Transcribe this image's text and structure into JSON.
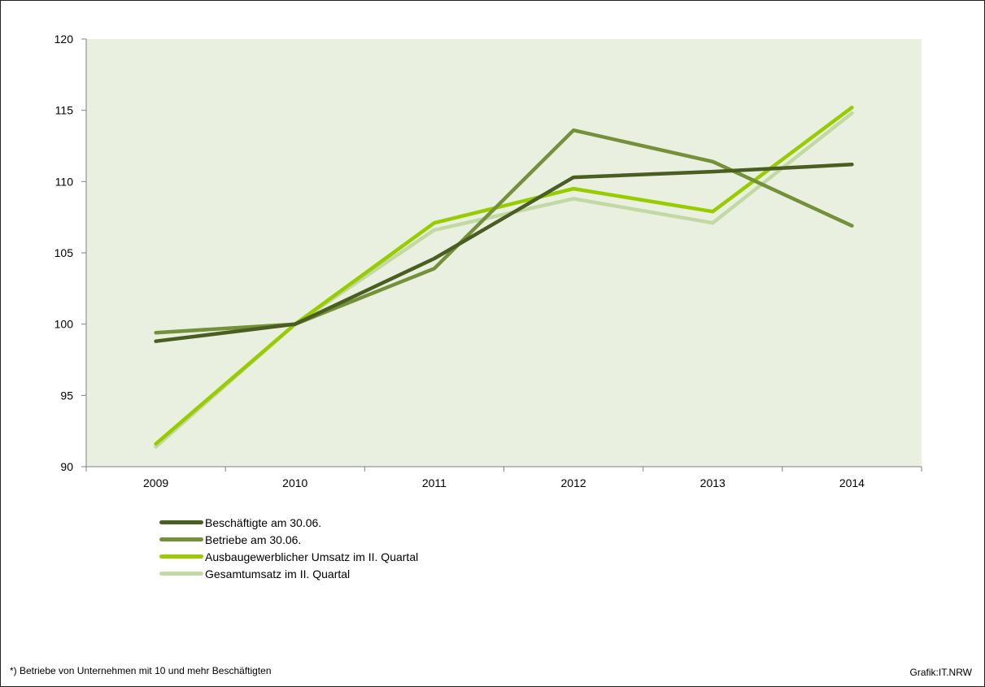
{
  "chart_data": {
    "type": "line",
    "title": "",
    "xlabel": "",
    "ylabel": "",
    "ylim": [
      90,
      120
    ],
    "yticks": [
      90,
      95,
      100,
      105,
      110,
      115,
      120
    ],
    "categories": [
      "2009",
      "2010",
      "2011",
      "2012",
      "2013",
      "2014"
    ],
    "grid": false,
    "legend_position": "bottom-left",
    "series": [
      {
        "name": "Beschäftigte am 30.06.",
        "color": "#4a5e22",
        "values": [
          98.8,
          100.0,
          104.6,
          110.3,
          110.7,
          111.2
        ]
      },
      {
        "name": "Betriebe am 30.06.",
        "color": "#74913a",
        "values": [
          99.4,
          100.0,
          103.9,
          113.6,
          111.4,
          106.9
        ]
      },
      {
        "name": "Ausbaugewerblicher Umsatz im II. Quartal",
        "color": "#99cc00",
        "values": [
          91.6,
          100.0,
          107.1,
          109.5,
          107.9,
          115.2
        ]
      },
      {
        "name": "Gesamtumsatz im II. Quartal",
        "color": "#c3d9a3",
        "values": [
          91.4,
          100.0,
          106.6,
          108.8,
          107.1,
          114.8
        ]
      }
    ]
  },
  "footnote": "*) Betriebe von Unternehmen mit 10 und mehr Beschäftigten",
  "credit": "Grafik:IT.NRW",
  "colors": {
    "plot_background": "#eaf0e0"
  }
}
